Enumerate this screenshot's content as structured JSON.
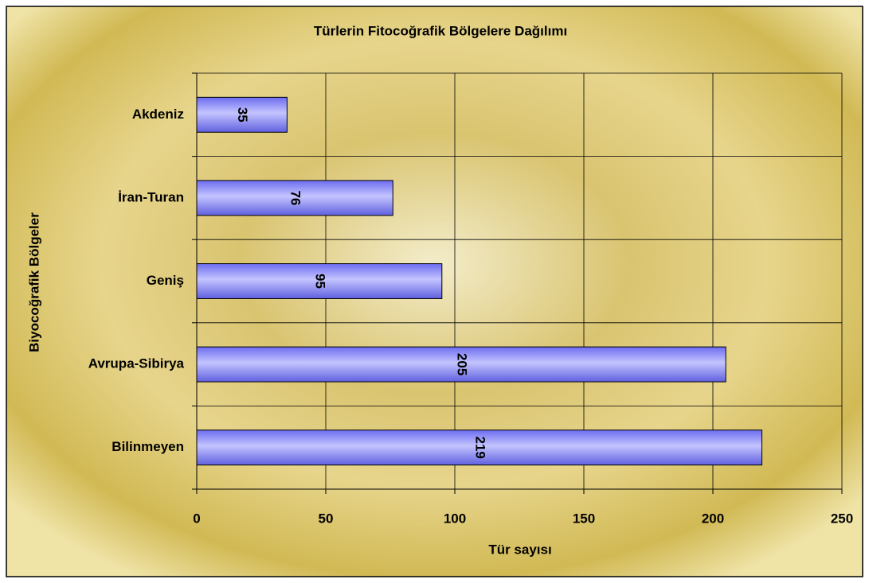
{
  "chart_data": {
    "type": "bar",
    "orientation": "horizontal",
    "title": "Türlerin Fitocoğrafik Bölgelere Dağılımı",
    "xlabel": "Tür sayısı",
    "ylabel": "Biyocoğrafik Bölgeler",
    "categories": [
      "Akdeniz",
      "İran-Turan",
      "Geniş",
      "Avrupa-Sibirya",
      "Bilinmeyen"
    ],
    "values": [
      35,
      76,
      95,
      205,
      219
    ],
    "color": "#8f8fff",
    "xlim": [
      0,
      250
    ],
    "xticks": [
      0,
      50,
      100,
      150,
      200,
      250
    ],
    "grid": true
  }
}
